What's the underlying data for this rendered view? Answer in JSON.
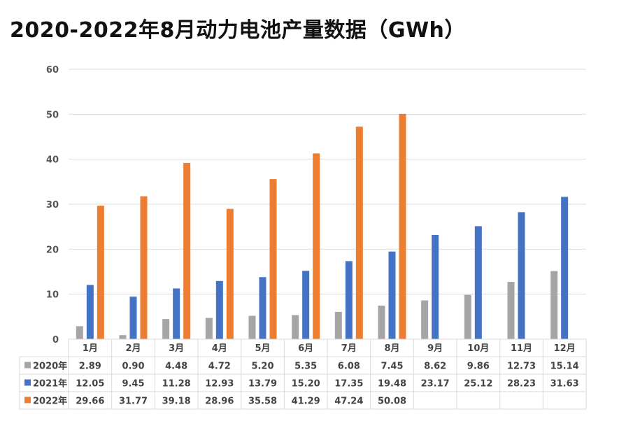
{
  "title": "2020-2022年8月动力电池产量数据（GWh）",
  "colors": {
    "2020年": "#a5a5a5",
    "2021年": "#4472c4",
    "2022年": "#ed7d31"
  },
  "chart_data": {
    "type": "bar",
    "title": "2020-2022年8月动力电池产量数据（GWh）",
    "categories": [
      "1月",
      "2月",
      "3月",
      "4月",
      "5月",
      "6月",
      "7月",
      "8月",
      "9月",
      "10月",
      "11月",
      "12月"
    ],
    "series": [
      {
        "name": "2020年",
        "values": [
          2.89,
          0.9,
          4.48,
          4.72,
          5.2,
          5.35,
          6.08,
          7.45,
          8.62,
          9.86,
          12.73,
          15.14
        ]
      },
      {
        "name": "2021年",
        "values": [
          12.05,
          9.45,
          11.28,
          12.93,
          13.79,
          15.2,
          17.35,
          19.48,
          23.17,
          25.12,
          28.23,
          31.63
        ]
      },
      {
        "name": "2022年",
        "values": [
          29.66,
          31.77,
          39.18,
          28.96,
          35.58,
          41.29,
          47.24,
          50.08,
          null,
          null,
          null,
          null
        ]
      }
    ],
    "yticks": [
      0,
      10,
      20,
      30,
      40,
      50,
      60
    ],
    "ylim": [
      0,
      60
    ],
    "grid": true,
    "legend": "data-table"
  }
}
